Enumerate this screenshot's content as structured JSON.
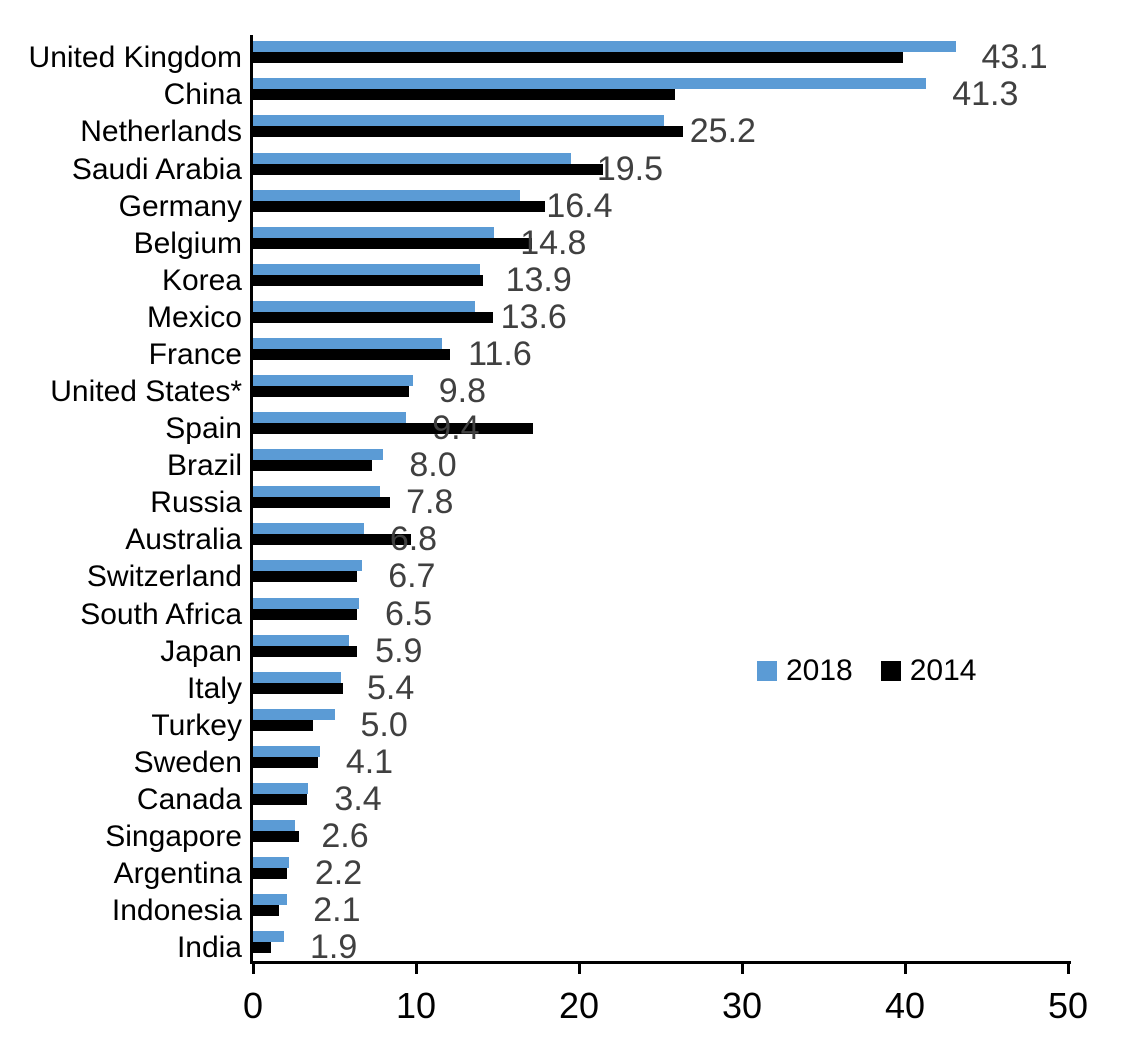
{
  "chart_data": {
    "type": "bar",
    "orientation": "horizontal",
    "title": "",
    "xlabel": "",
    "ylabel": "",
    "grid": false,
    "xlim": [
      0,
      50
    ],
    "x_ticks": [
      0,
      10,
      20,
      30,
      40,
      50
    ],
    "x_tick_labels": [
      "0",
      "10",
      "20",
      "30",
      "40",
      "50"
    ],
    "categories": [
      "United Kingdom",
      "China",
      "Netherlands",
      "Saudi Arabia",
      "Germany",
      "Belgium",
      "Korea",
      "Mexico",
      "France",
      "United States*",
      "Spain",
      "Brazil",
      "Russia",
      "Australia",
      "Switzerland",
      "South Africa",
      "Japan",
      "Italy",
      "Turkey",
      "Sweden",
      "Canada",
      "Singapore",
      "Argentina",
      "Indonesia",
      "India"
    ],
    "series": [
      {
        "name": "2018",
        "color": "#5B9BD5",
        "values": [
          43.1,
          41.3,
          25.2,
          19.5,
          16.4,
          14.8,
          13.9,
          13.6,
          11.6,
          9.8,
          9.4,
          8.0,
          7.8,
          6.8,
          6.7,
          6.5,
          5.9,
          5.4,
          5.0,
          4.1,
          3.4,
          2.6,
          2.2,
          2.1,
          1.9
        ]
      },
      {
        "name": "2014",
        "color": "#000000",
        "values": [
          39.9,
          25.9,
          26.4,
          21.5,
          17.9,
          17.1,
          14.1,
          14.7,
          12.1,
          9.6,
          17.2,
          7.3,
          8.4,
          9.7,
          6.4,
          6.4,
          6.4,
          5.5,
          3.7,
          4.0,
          3.3,
          2.8,
          2.1,
          1.6,
          1.1
        ]
      }
    ],
    "value_labels": [
      "43.1",
      "41.3",
      "25.2",
      "19.5",
      "16.4",
      "14.8",
      "13.9",
      "13.6",
      "11.6",
      "9.8",
      "9.4",
      "8.0",
      "7.8",
      "6.8",
      "6.7",
      "6.5",
      "5.9",
      "5.4",
      "5.0",
      "4.1",
      "3.4",
      "2.6",
      "2.2",
      "2.1",
      "1.9"
    ],
    "value_label_series": "2018",
    "legend": {
      "position": "middle-right",
      "entries": [
        "2018",
        "2014"
      ]
    }
  },
  "colors": {
    "bar_2018": "#5B9BD5",
    "bar_2014": "#000000",
    "value_label": "#404040",
    "axis": "#000000",
    "background": "#ffffff"
  }
}
